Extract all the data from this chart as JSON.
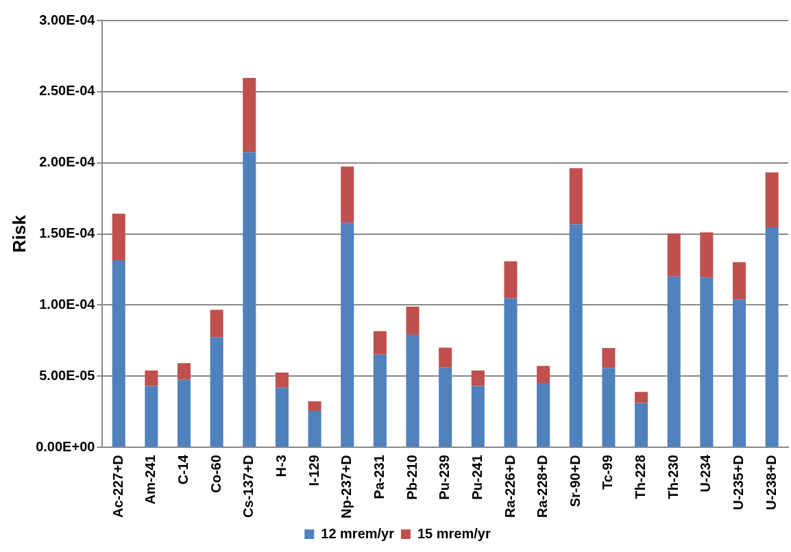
{
  "chart_data": {
    "type": "bar",
    "stacked": true,
    "ylabel": "Risk",
    "categories": [
      "Ac-227+D",
      "Am-241",
      "C-14",
      "Co-60",
      "Cs-137+D",
      "H-3",
      "I-129",
      "Np-237+D",
      "Pa-231",
      "Pb-210",
      "Pu-239",
      "Pu-241",
      "Ra-226+D",
      "Ra-228+D",
      "Sr-90+D",
      "Tc-99",
      "Th-228",
      "Th-230",
      "U-234",
      "U-235+D",
      "U-238+D"
    ],
    "series": [
      {
        "name": "12 mrem/yr",
        "color": "#4f81bd",
        "values": [
          0.0001315,
          4.32e-05,
          4.74e-05,
          7.73e-05,
          0.0002075,
          4.19e-05,
          2.56e-05,
          0.0001579,
          6.52e-05,
          7.91e-05,
          5.6e-05,
          4.32e-05,
          0.0001048,
          4.54e-05,
          0.0001568,
          5.57e-05,
          3.11e-05,
          0.0001201,
          0.0001194,
          0.000104,
          0.0001546
        ]
      },
      {
        "name": "15 mrem/yr",
        "color": "#c0504d",
        "values": [
          3.28e-05,
          1.08e-05,
          1.18e-05,
          1.94e-05,
          5.22e-05,
          1.07e-05,
          6.8e-06,
          3.95e-05,
          1.65e-05,
          1.98e-05,
          1.41e-05,
          1.08e-05,
          2.6e-05,
          1.19e-05,
          3.94e-05,
          1.41e-05,
          7.9e-06,
          3.03e-05,
          3.17e-05,
          2.62e-05,
          3.86e-05
        ]
      }
    ],
    "ylim": [
      0,
      0.0003
    ],
    "yticks": [
      {
        "value": 0,
        "label": "0.00E+00"
      },
      {
        "value": 5e-05,
        "label": "5.00E-05"
      },
      {
        "value": 0.0001,
        "label": "1.00E-04"
      },
      {
        "value": 0.00015,
        "label": "1.50E-04"
      },
      {
        "value": 0.0002,
        "label": "2.00E-04"
      },
      {
        "value": 0.00025,
        "label": "2.50E-04"
      },
      {
        "value": 0.0003,
        "label": "3.00E-04"
      }
    ],
    "grid": "y",
    "legend": "bottom"
  }
}
